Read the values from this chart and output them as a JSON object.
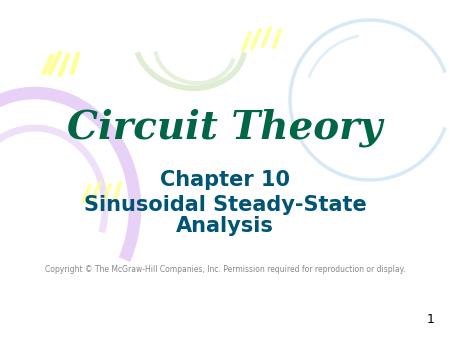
{
  "bg_color": "#ffffff",
  "title": "Circuit Theory",
  "title_color": "#006644",
  "title_fontsize": 28,
  "chapter": "Chapter 10",
  "chapter_color": "#005577",
  "chapter_fontsize": 15,
  "subtitle_line1": "Sinusoidal Steady-State",
  "subtitle_line2": "Analysis",
  "subtitle_color": "#005577",
  "subtitle_fontsize": 15,
  "copyright": "Copyright © The McGraw-Hill Companies, Inc. Permission required for reproduction or display.",
  "copyright_color": "#888888",
  "copyright_fontsize": 5.5,
  "page_number": "1",
  "page_number_color": "#000000",
  "page_number_fontsize": 9
}
